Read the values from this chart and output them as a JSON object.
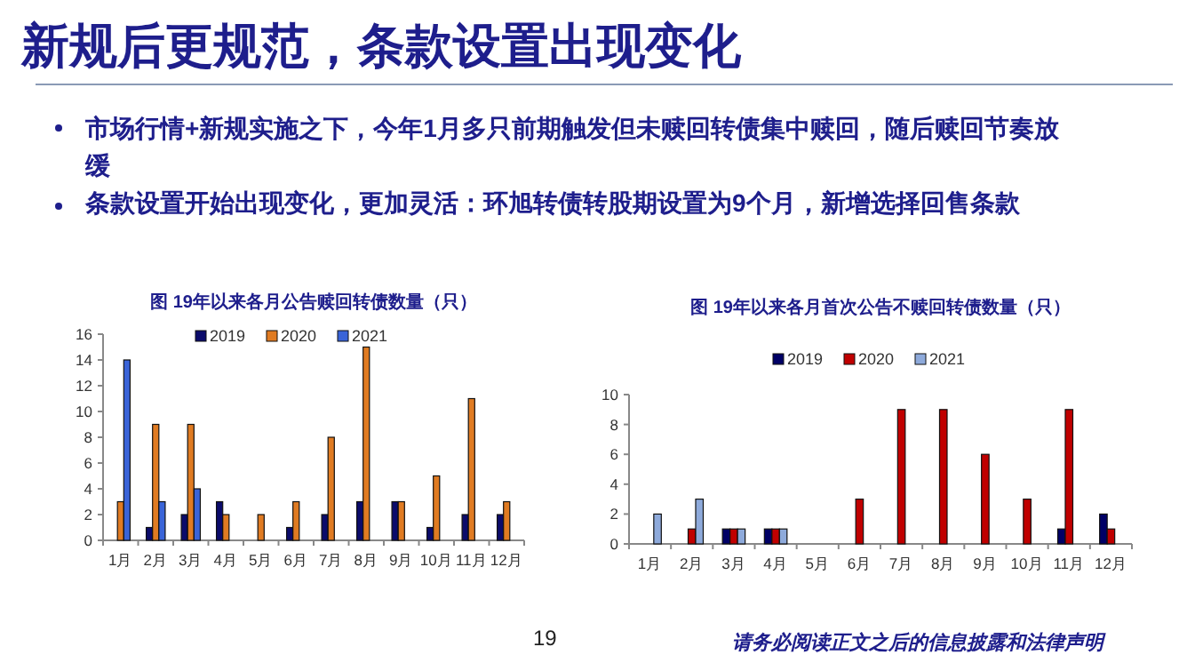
{
  "chart_data": [
    {
      "type": "other",
      "title": "新规后更规范，条款设置出现变化",
      "annotations": [
        "市场行情+新规实施之下，今年1月多只前期触发但未赎回转债集中赎回，随后赎回节奏放缓",
        "条款设置开始出现变化，更加灵活：环旭转债转股期设置为9个月，新增选择回售条款",
        "19",
        "请务必阅读正文之后的信息披露和法律声明"
      ]
    },
    {
      "type": "bar",
      "title": "图 19年以来各月公告赎回转债数量（只）",
      "categories": [
        "1月",
        "2月",
        "3月",
        "4月",
        "5月",
        "6月",
        "7月",
        "8月",
        "9月",
        "10月",
        "11月",
        "12月"
      ],
      "series": [
        {
          "name": "2019",
          "color": "#0b0b6b",
          "values": [
            0,
            1,
            2,
            3,
            0,
            1,
            2,
            3,
            3,
            1,
            2,
            2
          ]
        },
        {
          "name": "2020",
          "color": "#e07b22",
          "values": [
            3,
            9,
            9,
            2,
            2,
            3,
            8,
            15,
            3,
            5,
            11,
            3
          ]
        },
        {
          "name": "2021",
          "color": "#3a64d8",
          "values": [
            14,
            3,
            4,
            null,
            null,
            null,
            null,
            null,
            null,
            null,
            null,
            null
          ]
        }
      ],
      "ylim": [
        0,
        16
      ],
      "yticks": [
        0,
        2,
        4,
        6,
        8,
        10,
        12,
        14,
        16
      ],
      "legend": "top"
    },
    {
      "type": "bar",
      "title": "图 19年以来各月首次公告不赎回转债数量（只）",
      "categories": [
        "1月",
        "2月",
        "3月",
        "4月",
        "5月",
        "6月",
        "7月",
        "8月",
        "9月",
        "10月",
        "11月",
        "12月"
      ],
      "series": [
        {
          "name": "2019",
          "color": "#000066",
          "values": [
            0,
            0,
            1,
            1,
            0,
            0,
            0,
            0,
            0,
            0,
            1,
            2
          ]
        },
        {
          "name": "2020",
          "color": "#c00000",
          "values": [
            0,
            1,
            1,
            1,
            0,
            3,
            9,
            9,
            6,
            3,
            9,
            1
          ]
        },
        {
          "name": "2021",
          "color": "#8eaadb",
          "values": [
            2,
            3,
            1,
            1,
            null,
            null,
            null,
            null,
            null,
            null,
            null,
            null
          ]
        }
      ],
      "ylim": [
        0,
        10
      ],
      "yticks": [
        0,
        2,
        4,
        6,
        8,
        10
      ],
      "legend": "top"
    }
  ]
}
